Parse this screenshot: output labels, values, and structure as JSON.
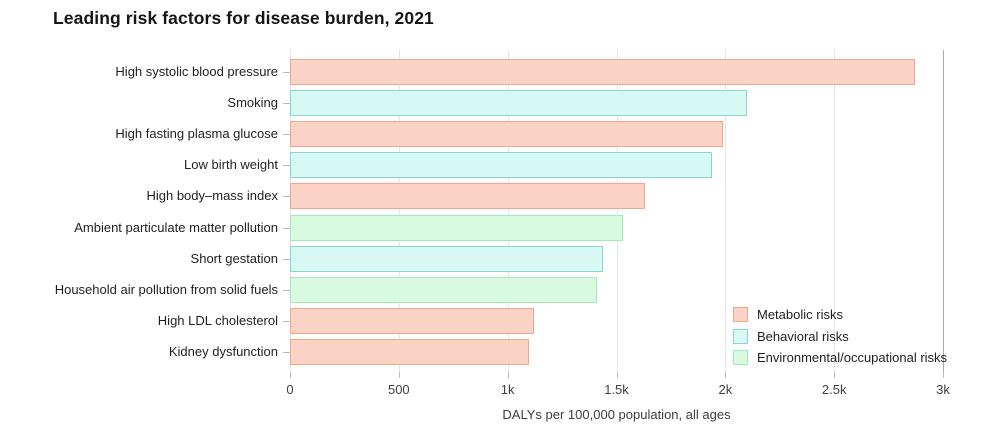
{
  "title": "Leading risk factors for disease burden, 2021",
  "chart_data": {
    "type": "bar",
    "orientation": "horizontal",
    "title": "Leading risk factors for disease burden, 2021",
    "xlabel": "DALYs per 100,000 population, all ages",
    "ylabel": "",
    "xlim": [
      0,
      3000
    ],
    "grid": true,
    "legend_position": "bottom-right",
    "categories": [
      "High systolic blood pressure",
      "Smoking",
      "High fasting plasma glucose",
      "Low birth weight",
      "High body–mass index",
      "Ambient particulate matter pollution",
      "Short gestation",
      "Household air pollution from solid fuels",
      "High LDL cholesterol",
      "Kidney dysfunction"
    ],
    "values": [
      2870,
      2100,
      1990,
      1940,
      1630,
      1530,
      1440,
      1410,
      1120,
      1100
    ],
    "groups": [
      "metabolic",
      "behavioral",
      "metabolic",
      "behavioral",
      "metabolic",
      "environmental",
      "behavioral",
      "environmental",
      "metabolic",
      "metabolic"
    ],
    "xticks": [
      {
        "value": 0,
        "label": "0"
      },
      {
        "value": 500,
        "label": "500"
      },
      {
        "value": 1000,
        "label": "1k"
      },
      {
        "value": 1500,
        "label": "1.5k"
      },
      {
        "value": 2000,
        "label": "2k"
      },
      {
        "value": 2500,
        "label": "2.5k"
      },
      {
        "value": 3000,
        "label": "3k"
      }
    ],
    "legend": [
      {
        "key": "metabolic",
        "label": "Metabolic risks",
        "fill": "#fbd3c5",
        "stroke": "#f0a78e"
      },
      {
        "key": "behavioral",
        "label": "Behavioral risks",
        "fill": "#d8f8f3",
        "stroke": "#8ad5cf"
      },
      {
        "key": "environmental",
        "label": "Environmental/occupational risks",
        "fill": "#d8fae1",
        "stroke": "#a6e9b7"
      }
    ]
  },
  "colors": {
    "gridline": "#e4e4e4",
    "gridline_edge": "#ababab",
    "tick_text": "#3f3f3f",
    "label_text": "#1f1f1f",
    "title_text": "#161616"
  }
}
